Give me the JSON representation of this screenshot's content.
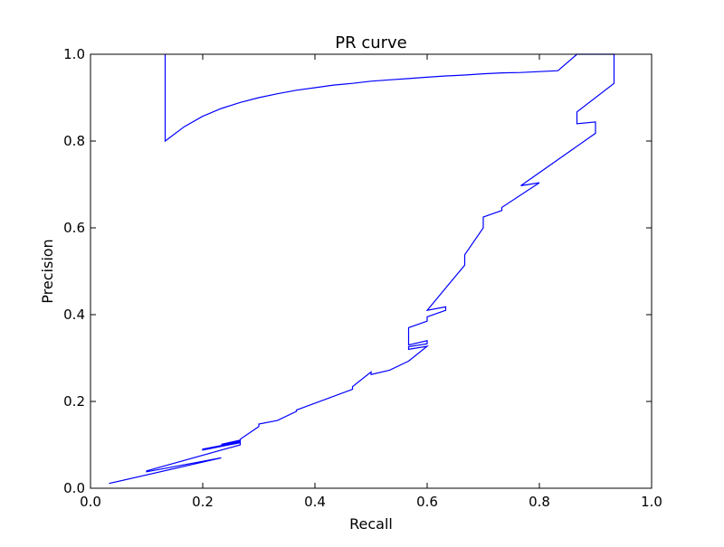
{
  "chart_data": {
    "type": "line",
    "title": "PR curve",
    "xlabel": "Recall",
    "ylabel": "Precision",
    "xlim": [
      0.0,
      1.0
    ],
    "ylim": [
      0.0,
      1.0
    ],
    "xticks": [
      "0.0",
      "0.2",
      "0.4",
      "0.6",
      "0.8",
      "1.0"
    ],
    "yticks": [
      "0.0",
      "0.2",
      "0.4",
      "0.6",
      "0.8",
      "1.0"
    ],
    "grid": false,
    "legend": "none",
    "line_color": "#0000ff",
    "series": [
      {
        "x": [
          0.133,
          0.133,
          0.167,
          0.2,
          0.233,
          0.267,
          0.3,
          0.333,
          0.367,
          0.4,
          0.433,
          0.467,
          0.5,
          0.533,
          0.567,
          0.6,
          0.633,
          0.667,
          0.7,
          0.733,
          0.767,
          0.8,
          0.833,
          0.867,
          0.933,
          0.933,
          0.867,
          0.867,
          0.9,
          0.9,
          0.767,
          0.8,
          0.733,
          0.733,
          0.7,
          0.7,
          0.667,
          0.667,
          0.6,
          0.633,
          0.633,
          0.6,
          0.6,
          0.567,
          0.567,
          0.6,
          0.6,
          0.567,
          0.567,
          0.6,
          0.567,
          0.533,
          0.5,
          0.5,
          0.467,
          0.467,
          0.367,
          0.367,
          0.333,
          0.3,
          0.3,
          0.267,
          0.267,
          0.233,
          0.267,
          0.267,
          0.2,
          0.2,
          0.267,
          0.267,
          0.1,
          0.1,
          0.233,
          0.033
        ],
        "y": [
          1.0,
          0.8,
          0.833,
          0.857,
          0.875,
          0.889,
          0.9,
          0.909,
          0.917,
          0.923,
          0.929,
          0.933,
          0.938,
          0.941,
          0.944,
          0.947,
          0.95,
          0.952,
          0.955,
          0.957,
          0.958,
          0.96,
          0.962,
          1.0,
          1.0,
          0.933,
          0.867,
          0.84,
          0.844,
          0.818,
          0.697,
          0.704,
          0.647,
          0.64,
          0.625,
          0.6,
          0.538,
          0.514,
          0.41,
          0.418,
          0.41,
          0.395,
          0.385,
          0.37,
          0.33,
          0.34,
          0.333,
          0.326,
          0.32,
          0.327,
          0.293,
          0.272,
          0.262,
          0.268,
          0.234,
          0.228,
          0.18,
          0.177,
          0.156,
          0.148,
          0.142,
          0.113,
          0.109,
          0.101,
          0.111,
          0.107,
          0.09,
          0.088,
          0.105,
          0.1,
          0.04,
          0.038,
          0.07,
          0.011
        ]
      }
    ]
  }
}
